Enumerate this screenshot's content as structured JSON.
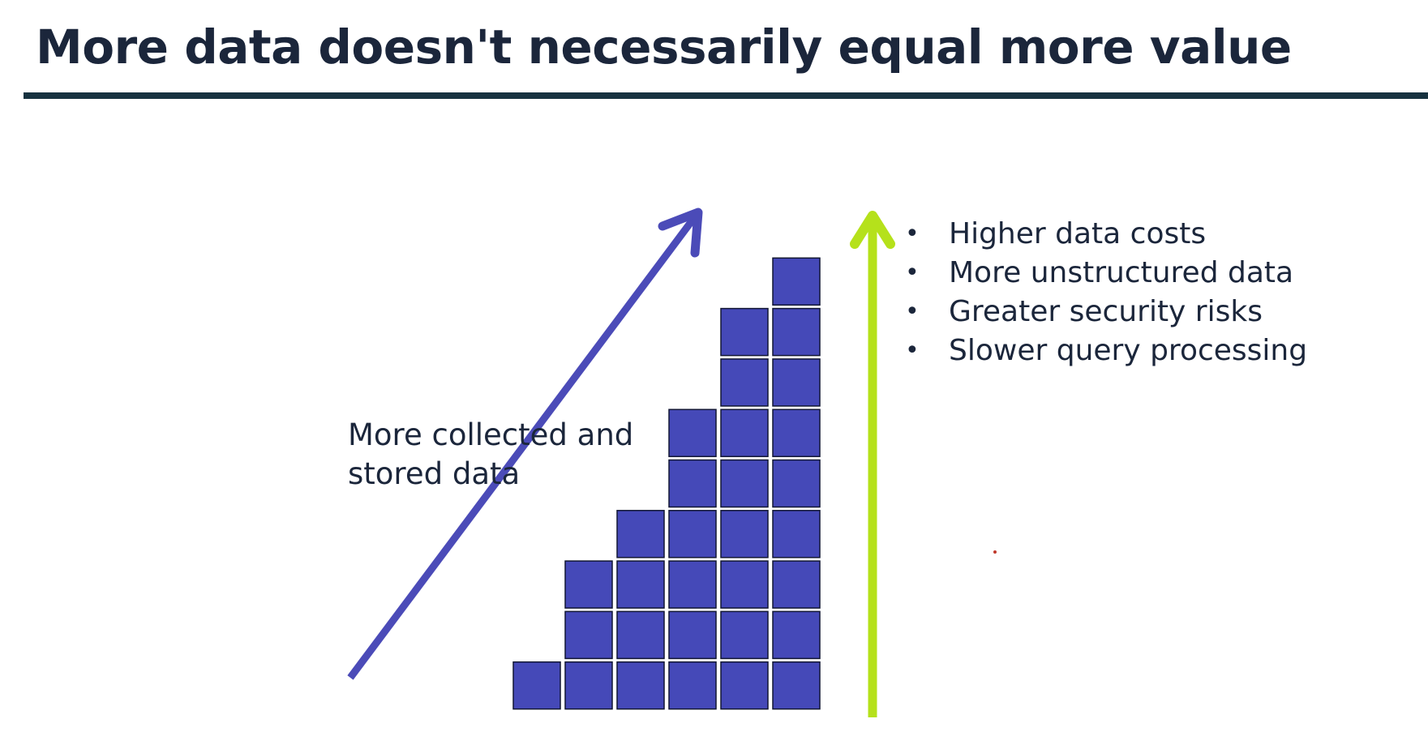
{
  "slide": {
    "title": "More data doesn't necessarily equal more value",
    "diagram_label": "More collected and\nstored data",
    "bullets": [
      "Higher data costs",
      "More unstructured data",
      "Greater security risks",
      "Slower query processing"
    ],
    "staircase_column_heights": [
      1,
      3,
      4,
      6,
      8,
      9
    ],
    "colors": {
      "title": "#1b263b",
      "rule": "#16313f",
      "block_fill": "#4549b8",
      "block_stroke": "#111633",
      "diagonal_arrow": "#4b4bb8",
      "vertical_arrow": "#b5e11b",
      "text": "#1b263b"
    },
    "icons": {
      "diagonal_arrow": "arrow-up-right-icon",
      "vertical_arrow": "arrow-up-icon",
      "bullet": "bullet-dot-icon"
    }
  }
}
